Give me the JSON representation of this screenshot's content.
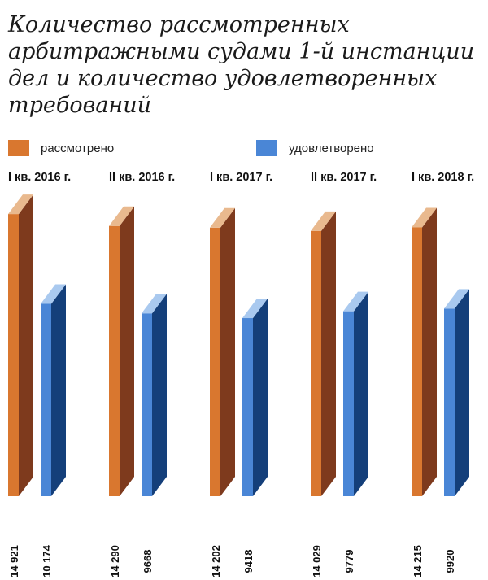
{
  "chart_data": {
    "type": "bar",
    "title": "Количество рассмотренных арбитражными судами 1-й инстанции дел и количество удовлетворенных требований",
    "categories": [
      "I кв. 2016 г.",
      "II кв. 2016 г.",
      "I кв. 2017 г.",
      "II кв. 2017 г.",
      "I кв. 2018 г."
    ],
    "series": [
      {
        "name": "рассмотрено",
        "values": [
          14921,
          14290,
          14202,
          14029,
          14215
        ],
        "labels": [
          "14 921",
          "14 290",
          "14 202",
          "14 029",
          "14 215"
        ]
      },
      {
        "name": "удовлетворено",
        "values": [
          10174,
          9668,
          9418,
          9779,
          9920
        ],
        "labels": [
          "10 174",
          "9668",
          "9418",
          "9779",
          "9920"
        ]
      }
    ],
    "ylim": [
      0,
      15000
    ],
    "grid": false,
    "legend_position": "top",
    "colors": {
      "series1_front": "#d9772f",
      "series1_side": "#7e3a1d",
      "series1_top": "#e9b98e",
      "series2_front": "#4a86d6",
      "series2_side": "#143f7a",
      "series2_top": "#a9c9ef"
    }
  }
}
